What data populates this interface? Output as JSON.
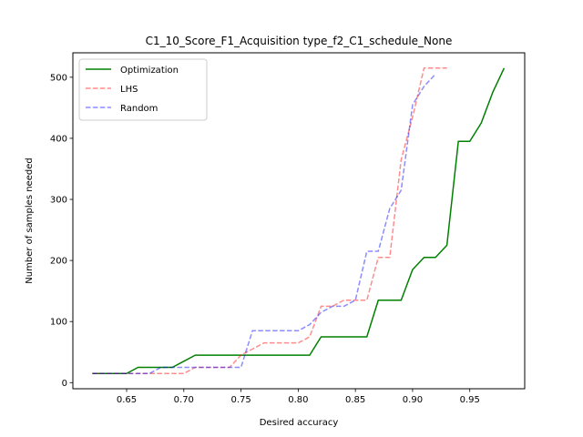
{
  "chart_data": {
    "type": "line",
    "title": "C1_10_Score_F1_Acquisition type_f2_C1_schedule_None",
    "xlabel": "Desired accuracy",
    "ylabel": "Number of samples needed",
    "xlim": [
      0.603,
      0.998
    ],
    "ylim": [
      -10,
      540
    ],
    "xticks": [
      0.65,
      0.7,
      0.75,
      0.8,
      0.85,
      0.9,
      0.95
    ],
    "xtick_labels": [
      "0.65",
      "0.70",
      "0.75",
      "0.80",
      "0.85",
      "0.90",
      "0.95"
    ],
    "yticks": [
      0,
      100,
      200,
      300,
      400,
      500
    ],
    "ytick_labels": [
      "0",
      "100",
      "200",
      "300",
      "400",
      "500"
    ],
    "grid": false,
    "legend_position": "top-left",
    "series": [
      {
        "name": "Optimization",
        "color": "#008000",
        "dash": "solid",
        "opacity": 1,
        "x": [
          0.62,
          0.63,
          0.64,
          0.65,
          0.66,
          0.67,
          0.68,
          0.69,
          0.7,
          0.71,
          0.72,
          0.73,
          0.74,
          0.75,
          0.76,
          0.77,
          0.78,
          0.79,
          0.8,
          0.81,
          0.82,
          0.83,
          0.84,
          0.85,
          0.86,
          0.87,
          0.88,
          0.89,
          0.9,
          0.91,
          0.92,
          0.93,
          0.94,
          0.95,
          0.96,
          0.97,
          0.98
        ],
        "y": [
          15,
          15,
          15,
          15,
          25,
          25,
          25,
          25,
          35,
          45,
          45,
          45,
          45,
          45,
          45,
          45,
          45,
          45,
          45,
          45,
          75,
          75,
          75,
          75,
          75,
          135,
          135,
          135,
          185,
          205,
          205,
          225,
          395,
          395,
          425,
          475,
          515
        ]
      },
      {
        "name": "LHS",
        "color": "#ff0000",
        "dash": "dashed",
        "opacity": 0.45,
        "x": [
          0.62,
          0.63,
          0.64,
          0.65,
          0.66,
          0.67,
          0.68,
          0.69,
          0.7,
          0.71,
          0.72,
          0.73,
          0.74,
          0.75,
          0.76,
          0.77,
          0.78,
          0.79,
          0.8,
          0.81,
          0.82,
          0.83,
          0.84,
          0.85,
          0.86,
          0.87,
          0.88,
          0.89,
          0.9,
          0.91,
          0.92,
          0.93
        ],
        "y": [
          15,
          15,
          15,
          15,
          15,
          15,
          15,
          15,
          15,
          25,
          25,
          25,
          25,
          45,
          55,
          65,
          65,
          65,
          65,
          75,
          125,
          125,
          135,
          135,
          135,
          205,
          205,
          365,
          435,
          515,
          515,
          515
        ]
      },
      {
        "name": "Random",
        "color": "#0000ff",
        "dash": "dashed",
        "opacity": 0.45,
        "x": [
          0.62,
          0.63,
          0.64,
          0.65,
          0.66,
          0.67,
          0.68,
          0.69,
          0.7,
          0.71,
          0.72,
          0.73,
          0.74,
          0.75,
          0.76,
          0.77,
          0.78,
          0.79,
          0.8,
          0.81,
          0.82,
          0.83,
          0.84,
          0.85,
          0.86,
          0.87,
          0.88,
          0.89,
          0.9,
          0.91,
          0.92
        ],
        "y": [
          15,
          15,
          15,
          15,
          15,
          15,
          25,
          25,
          25,
          25,
          25,
          25,
          25,
          25,
          85,
          85,
          85,
          85,
          85,
          95,
          115,
          125,
          125,
          135,
          215,
          215,
          285,
          315,
          455,
          485,
          505
        ]
      }
    ]
  }
}
